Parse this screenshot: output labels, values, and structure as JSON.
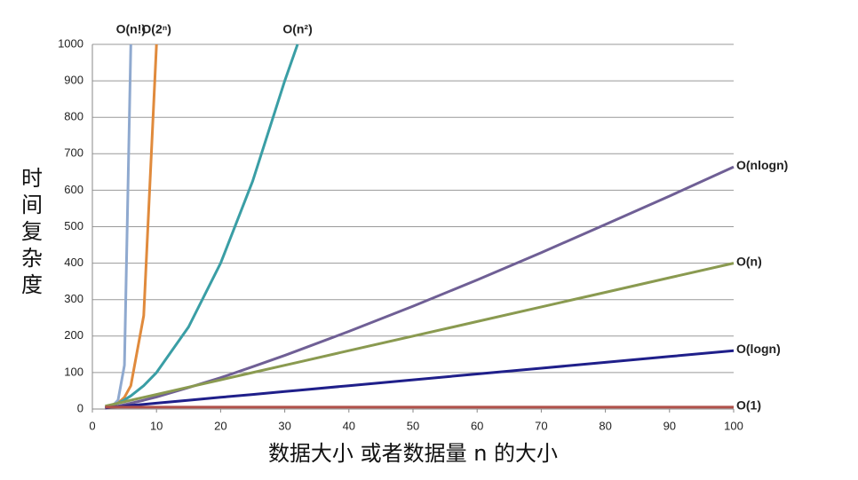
{
  "chart_data": {
    "type": "line",
    "x_label": "数据大小 或者数据量 n 的大小",
    "y_label": "时间复杂度",
    "x": [
      2,
      3,
      4,
      5,
      6,
      8,
      10,
      15,
      20,
      25,
      30,
      32,
      40,
      50,
      60,
      70,
      80,
      90,
      100
    ],
    "series": [
      {
        "name": "O(n!)",
        "color": "#8fa9cf",
        "values": [
          2,
          6,
          24,
          120,
          1000,
          null,
          null,
          null,
          null,
          null,
          null,
          null,
          null,
          null,
          null,
          null,
          null,
          null,
          null
        ]
      },
      {
        "name": "O(2ⁿ)",
        "color": "#e08a3c",
        "values": [
          4,
          8,
          16,
          32,
          64,
          256,
          1000,
          null,
          null,
          null,
          null,
          null,
          null,
          null,
          null,
          null,
          null,
          null,
          null
        ]
      },
      {
        "name": "O(n²)",
        "color": "#3a9ea5",
        "values": [
          4,
          9,
          16,
          25,
          36,
          64,
          100,
          225,
          400,
          625,
          900,
          1000,
          null,
          null,
          null,
          null,
          null,
          null,
          null
        ]
      },
      {
        "name": "O(nlogn)",
        "color": "#6f5f95",
        "values": [
          2,
          5,
          8,
          12,
          16,
          24,
          33,
          59,
          86,
          116,
          147,
          160,
          213,
          282,
          354,
          429,
          506,
          584,
          664
        ]
      },
      {
        "name": "O(n)",
        "color": "#8a9a50",
        "values": [
          8,
          12,
          16,
          20,
          24,
          32,
          40,
          60,
          80,
          100,
          120,
          128,
          160,
          200,
          240,
          280,
          320,
          360,
          400
        ]
      },
      {
        "name": "O(logn)",
        "color": "#1f1f8a",
        "values": [
          3,
          5,
          6,
          8,
          10,
          13,
          16,
          24,
          32,
          40,
          48,
          51,
          64,
          80,
          96,
          112,
          128,
          144,
          160
        ]
      },
      {
        "name": "O(1)",
        "color": "#b0504a",
        "values": [
          5,
          5,
          5,
          5,
          5,
          5,
          5,
          5,
          5,
          5,
          5,
          5,
          5,
          5,
          5,
          5,
          5,
          5,
          5
        ]
      }
    ],
    "xlim": [
      0,
      100
    ],
    "xticks": [
      0,
      10,
      20,
      30,
      40,
      50,
      60,
      70,
      80,
      90,
      100
    ],
    "ylim": [
      0,
      1000
    ],
    "yticks": [
      0,
      100,
      200,
      300,
      400,
      500,
      600,
      700,
      800,
      900,
      1000
    ],
    "grid": true
  }
}
